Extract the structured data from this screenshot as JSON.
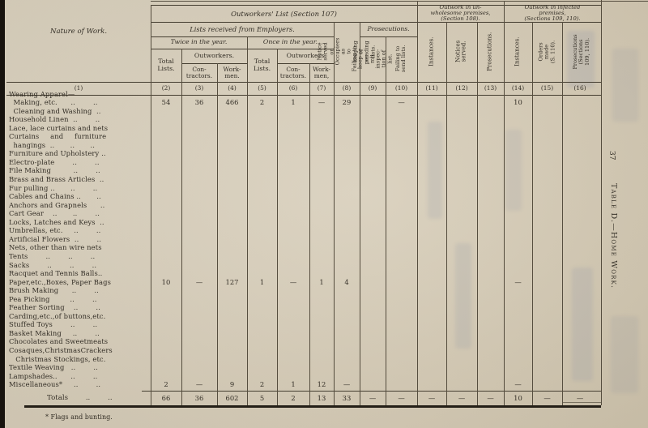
{
  "page": {
    "page_number": "37",
    "side_title": "Table D.—Home Work.",
    "footnote": "* Flags and bunting."
  },
  "header": {
    "nature_of_work": "Nature of Work.",
    "col1_num": "(1)",
    "section_107": "Outworkers' List (Section 107)",
    "section_108": "Outwork in un-\nwholesome premises,\n(Section 108).",
    "section_109": "Outwork in infected\npremises,\n(Sections 109, 110).",
    "lists_received": "Lists received from Employers.",
    "prosecutions": "Prosecutions.",
    "twice": "Twice in the year.",
    "once": "Once in the year.",
    "total_lists_a": "Total\nLists.",
    "outworkers_a": "Outworkers.",
    "contractors_a": "Con-\ntractors.",
    "workmen_a": "Work-\nmen.",
    "total_lists_b": "Total\nLists.",
    "outworkers_b": "Outworkers",
    "contractors_b": "Con-\ntractors.",
    "workmen_b": "Work-\nmen,",
    "rot8": "Notice served\non Occupiers as\nto keeping or\nsending lists.",
    "rot9": "Failing to\nkeep or per-\nmit inspec-\ntion of list.",
    "rot10": "Failing to\nsend lists.",
    "rot11": "Instances.",
    "rot12": "Notices served.",
    "rot13": "Prosecutions.",
    "rot14": "Instances.",
    "rot15": "Orders made\n(S. 110).",
    "rot16": "Prosecutions\n(Sections\n109, 110).",
    "col_nums": [
      "(2)",
      "(3)",
      "(4)",
      "(5)",
      "(6)",
      "(7)",
      "(8)",
      "(9)",
      "(10)",
      "(11)",
      "(12)",
      "(13)",
      "(14)",
      "(15)",
      "(16)"
    ]
  },
  "body": {
    "rows": [
      {
        "label": "Wearing Apparel—",
        "values": []
      },
      {
        "label": "  Making, etc.      ..        ..",
        "values": [
          "54",
          "36",
          "466",
          "2",
          "1",
          "—",
          "29",
          "",
          "—",
          "",
          "",
          "",
          "10",
          "",
          ""
        ]
      },
      {
        "label": "  Cleaning and Washing  ..",
        "values": []
      },
      {
        "label": "Household Linen  ..        ..",
        "values": []
      },
      {
        "label": "Lace, lace curtains and nets",
        "values": []
      },
      {
        "label": "Curtains     and     furniture",
        "values": []
      },
      {
        "label": "  hangings  ..       ..       ..",
        "values": []
      },
      {
        "label": "Furniture and Upholstery ..",
        "values": []
      },
      {
        "label": "Electro-plate        ..        ..",
        "values": []
      },
      {
        "label": "File Making          ..        ..",
        "values": []
      },
      {
        "label": "Brass and Brass Articles  ..",
        "values": []
      },
      {
        "label": "Fur pulling ..       ..        ..",
        "values": []
      },
      {
        "label": "Cables and Chains ..       ..",
        "values": []
      },
      {
        "label": "Anchors and Grapnels      ..",
        "values": []
      },
      {
        "label": "Cart Gear    ..       ..        ..",
        "values": []
      },
      {
        "label": "Locks, Latches and Keys  ..",
        "values": []
      },
      {
        "label": "Umbrellas, etc.     ..        ..",
        "values": []
      },
      {
        "label": "Artificial Flowers  ..        ..",
        "values": []
      },
      {
        "label": "Nets, other than wire nets",
        "values": []
      },
      {
        "label": "Tents        ..        ..        ..",
        "values": []
      },
      {
        "label": "Sacks        ..        ..        ..",
        "values": []
      },
      {
        "label": "Racquet and Tennis Balls..",
        "values": []
      },
      {
        "label": "Paper,etc.,Boxes, Paper Bags",
        "values": [
          "10",
          "—",
          "127",
          "1",
          "—",
          "1",
          "4",
          "",
          "",
          "",
          "",
          "",
          "—",
          "",
          ""
        ]
      },
      {
        "label": "Brush Making      ..        ..",
        "values": []
      },
      {
        "label": "Pea Picking         ..        ..",
        "values": []
      },
      {
        "label": "Feather Sorting    ..        ..",
        "values": []
      },
      {
        "label": "Carding,etc.,of buttons,etc.",
        "values": []
      },
      {
        "label": "Stuffed Toys        ..        ..",
        "values": []
      },
      {
        "label": "Basket Making     ..        ..",
        "values": []
      },
      {
        "label": "Chocolates and Sweetmeats",
        "values": []
      },
      {
        "label": "Cosaques,ChristmasCrackers",
        "values": []
      },
      {
        "label": "   Christmas Stockings, etc.",
        "values": []
      },
      {
        "label": "Textile Weaving   ..        ..",
        "values": []
      },
      {
        "label": "Lampshades..      ..        ..",
        "values": []
      },
      {
        "label": "Miscellaneous*     ..        ..",
        "values": [
          "2",
          "—",
          "9",
          "2",
          "1",
          "12",
          "—",
          "",
          "",
          "",
          "",
          "",
          "—",
          "",
          ""
        ]
      }
    ],
    "totals": {
      "label": "Totals        ..        ..",
      "values": [
        "66",
        "36",
        "602",
        "5",
        "2",
        "13",
        "33",
        "—",
        "—",
        "—",
        "—",
        "—",
        "10",
        "—",
        "—"
      ]
    }
  }
}
